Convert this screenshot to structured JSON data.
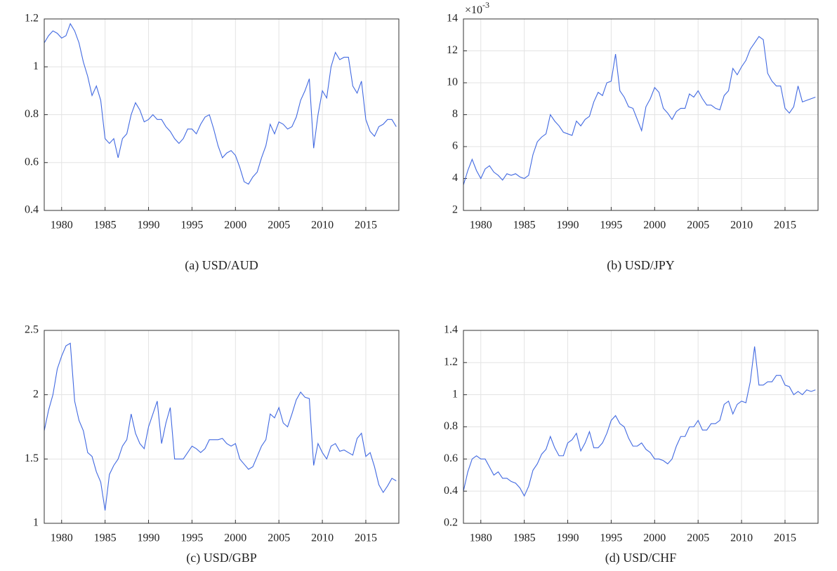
{
  "chart_data": [
    {
      "type": "line",
      "caption": "(a) USD/AUD",
      "color": "#4169e1",
      "grid": true,
      "xlim": [
        1978,
        2018.8
      ],
      "xticks": [
        1980,
        1985,
        1990,
        1995,
        2000,
        2005,
        2010,
        2015
      ],
      "ylim": [
        0.4,
        1.2
      ],
      "yticks": [
        0.4,
        0.6,
        0.8,
        1,
        1.2
      ],
      "x": [
        1978,
        1978.5,
        1979,
        1979.5,
        1980,
        1980.5,
        1981,
        1981.5,
        1982,
        1982.5,
        1983,
        1983.5,
        1984,
        1984.5,
        1985,
        1985.5,
        1986,
        1986.5,
        1987,
        1987.5,
        1988,
        1988.5,
        1989,
        1989.5,
        1990,
        1990.5,
        1991,
        1991.5,
        1992,
        1992.5,
        1993,
        1993.5,
        1994,
        1994.5,
        1995,
        1995.5,
        1996,
        1996.5,
        1997,
        1997.5,
        1998,
        1998.5,
        1999,
        1999.5,
        2000,
        2000.5,
        2001,
        2001.5,
        2002,
        2002.5,
        2003,
        2003.5,
        2004,
        2004.5,
        2005,
        2005.5,
        2006,
        2006.5,
        2007,
        2007.5,
        2008,
        2008.5,
        2009,
        2009.5,
        2010,
        2010.5,
        2011,
        2011.5,
        2012,
        2012.5,
        2013,
        2013.5,
        2014,
        2014.5,
        2015,
        2015.5,
        2016,
        2016.5,
        2017,
        2017.5,
        2018,
        2018.5
      ],
      "values": [
        1.1,
        1.13,
        1.15,
        1.14,
        1.12,
        1.13,
        1.18,
        1.15,
        1.1,
        1.02,
        0.96,
        0.88,
        0.92,
        0.86,
        0.7,
        0.68,
        0.7,
        0.62,
        0.7,
        0.72,
        0.8,
        0.85,
        0.82,
        0.77,
        0.78,
        0.8,
        0.78,
        0.78,
        0.75,
        0.73,
        0.7,
        0.68,
        0.7,
        0.74,
        0.74,
        0.72,
        0.76,
        0.79,
        0.8,
        0.74,
        0.67,
        0.62,
        0.64,
        0.65,
        0.63,
        0.58,
        0.52,
        0.51,
        0.54,
        0.56,
        0.62,
        0.67,
        0.76,
        0.72,
        0.77,
        0.76,
        0.74,
        0.75,
        0.79,
        0.86,
        0.9,
        0.95,
        0.66,
        0.8,
        0.9,
        0.87,
        1.0,
        1.06,
        1.03,
        1.04,
        1.04,
        0.92,
        0.89,
        0.94,
        0.78,
        0.73,
        0.71,
        0.75,
        0.76,
        0.78,
        0.78,
        0.75
      ]
    },
    {
      "type": "line",
      "caption": "(b) USD/JPY",
      "color": "#4169e1",
      "grid": true,
      "y_multiplier_base": "×10",
      "y_multiplier_exponent": "-3",
      "xlim": [
        1978,
        2018.8
      ],
      "xticks": [
        1980,
        1985,
        1990,
        1995,
        2000,
        2005,
        2010,
        2015
      ],
      "ylim": [
        2,
        14
      ],
      "yticks": [
        2,
        4,
        6,
        8,
        10,
        12,
        14
      ],
      "x": [
        1978,
        1978.5,
        1979,
        1979.5,
        1980,
        1980.5,
        1981,
        1981.5,
        1982,
        1982.5,
        1983,
        1983.5,
        1984,
        1984.5,
        1985,
        1985.5,
        1986,
        1986.5,
        1987,
        1987.5,
        1988,
        1988.5,
        1989,
        1989.5,
        1990,
        1990.5,
        1991,
        1991.5,
        1992,
        1992.5,
        1993,
        1993.5,
        1994,
        1994.5,
        1995,
        1995.5,
        1996,
        1996.5,
        1997,
        1997.5,
        1998,
        1998.5,
        1999,
        1999.5,
        2000,
        2000.5,
        2001,
        2001.5,
        2002,
        2002.5,
        2003,
        2003.5,
        2004,
        2004.5,
        2005,
        2005.5,
        2006,
        2006.5,
        2007,
        2007.5,
        2008,
        2008.5,
        2009,
        2009.5,
        2010,
        2010.5,
        2011,
        2011.5,
        2012,
        2012.5,
        2013,
        2013.5,
        2014,
        2014.5,
        2015,
        2015.5,
        2016,
        2016.5,
        2017,
        2017.5,
        2018,
        2018.5
      ],
      "values": [
        3.6,
        4.5,
        5.2,
        4.5,
        4.0,
        4.6,
        4.8,
        4.4,
        4.2,
        3.9,
        4.3,
        4.2,
        4.3,
        4.1,
        4.0,
        4.2,
        5.5,
        6.3,
        6.6,
        6.8,
        8.0,
        7.6,
        7.3,
        6.9,
        6.8,
        6.7,
        7.6,
        7.3,
        7.7,
        7.9,
        8.8,
        9.4,
        9.2,
        10.0,
        10.1,
        11.8,
        9.5,
        9.1,
        8.5,
        8.4,
        7.7,
        7.0,
        8.5,
        9.0,
        9.7,
        9.4,
        8.4,
        8.1,
        7.7,
        8.2,
        8.4,
        8.4,
        9.3,
        9.1,
        9.5,
        9.0,
        8.6,
        8.6,
        8.4,
        8.3,
        9.2,
        9.5,
        10.9,
        10.5,
        11.0,
        11.4,
        12.1,
        12.5,
        12.9,
        12.7,
        10.6,
        10.1,
        9.8,
        9.8,
        8.4,
        8.1,
        8.5,
        9.8,
        8.8,
        8.9,
        9.0,
        9.1
      ]
    },
    {
      "type": "line",
      "caption": "(c) USD/GBP",
      "color": "#4169e1",
      "grid": true,
      "xlim": [
        1978,
        2018.8
      ],
      "xticks": [
        1980,
        1985,
        1990,
        1995,
        2000,
        2005,
        2010,
        2015
      ],
      "ylim": [
        1,
        2.5
      ],
      "yticks": [
        1,
        1.5,
        2,
        2.5
      ],
      "x": [
        1978,
        1978.5,
        1979,
        1979.5,
        1980,
        1980.5,
        1981,
        1981.5,
        1982,
        1982.5,
        1983,
        1983.5,
        1984,
        1984.5,
        1985,
        1985.5,
        1986,
        1986.5,
        1987,
        1987.5,
        1988,
        1988.5,
        1989,
        1989.5,
        1990,
        1990.5,
        1991,
        1991.5,
        1992,
        1992.5,
        1993,
        1993.5,
        1994,
        1994.5,
        1995,
        1995.5,
        1996,
        1996.5,
        1997,
        1997.5,
        1998,
        1998.5,
        1999,
        1999.5,
        2000,
        2000.5,
        2001,
        2001.5,
        2002,
        2002.5,
        2003,
        2003.5,
        2004,
        2004.5,
        2005,
        2005.5,
        2006,
        2006.5,
        2007,
        2007.5,
        2008,
        2008.5,
        2009,
        2009.5,
        2010,
        2010.5,
        2011,
        2011.5,
        2012,
        2012.5,
        2013,
        2013.5,
        2014,
        2014.5,
        2015,
        2015.5,
        2016,
        2016.5,
        2017,
        2017.5,
        2018,
        2018.5
      ],
      "values": [
        1.72,
        1.88,
        2.0,
        2.2,
        2.3,
        2.38,
        2.4,
        1.95,
        1.8,
        1.72,
        1.55,
        1.52,
        1.4,
        1.32,
        1.1,
        1.38,
        1.45,
        1.5,
        1.6,
        1.65,
        1.85,
        1.7,
        1.62,
        1.58,
        1.75,
        1.85,
        1.95,
        1.62,
        1.78,
        1.9,
        1.5,
        1.5,
        1.5,
        1.55,
        1.6,
        1.58,
        1.55,
        1.58,
        1.65,
        1.65,
        1.65,
        1.66,
        1.62,
        1.6,
        1.62,
        1.5,
        1.46,
        1.42,
        1.44,
        1.52,
        1.6,
        1.65,
        1.85,
        1.82,
        1.9,
        1.78,
        1.75,
        1.85,
        1.96,
        2.02,
        1.98,
        1.97,
        1.45,
        1.62,
        1.55,
        1.5,
        1.6,
        1.62,
        1.56,
        1.57,
        1.55,
        1.53,
        1.66,
        1.7,
        1.52,
        1.55,
        1.44,
        1.3,
        1.24,
        1.29,
        1.35,
        1.33
      ]
    },
    {
      "type": "line",
      "caption": "(d) USD/CHF",
      "color": "#4169e1",
      "grid": true,
      "xlim": [
        1978,
        2018.8
      ],
      "xticks": [
        1980,
        1985,
        1990,
        1995,
        2000,
        2005,
        2010,
        2015
      ],
      "ylim": [
        0.2,
        1.4
      ],
      "yticks": [
        0.2,
        0.4,
        0.6,
        0.8,
        1,
        1.2,
        1.4
      ],
      "x": [
        1978,
        1978.5,
        1979,
        1979.5,
        1980,
        1980.5,
        1981,
        1981.5,
        1982,
        1982.5,
        1983,
        1983.5,
        1984,
        1984.5,
        1985,
        1985.5,
        1986,
        1986.5,
        1987,
        1987.5,
        1988,
        1988.5,
        1989,
        1989.5,
        1990,
        1990.5,
        1991,
        1991.5,
        1992,
        1992.5,
        1993,
        1993.5,
        1994,
        1994.5,
        1995,
        1995.5,
        1996,
        1996.5,
        1997,
        1997.5,
        1998,
        1998.5,
        1999,
        1999.5,
        2000,
        2000.5,
        2001,
        2001.5,
        2002,
        2002.5,
        2003,
        2003.5,
        2004,
        2004.5,
        2005,
        2005.5,
        2006,
        2006.5,
        2007,
        2007.5,
        2008,
        2008.5,
        2009,
        2009.5,
        2010,
        2010.5,
        2011,
        2011.5,
        2012,
        2012.5,
        2013,
        2013.5,
        2014,
        2014.5,
        2015,
        2015.5,
        2016,
        2016.5,
        2017,
        2017.5,
        2018,
        2018.5
      ],
      "values": [
        0.4,
        0.52,
        0.6,
        0.62,
        0.6,
        0.6,
        0.55,
        0.5,
        0.52,
        0.48,
        0.48,
        0.46,
        0.45,
        0.42,
        0.37,
        0.43,
        0.53,
        0.57,
        0.63,
        0.66,
        0.74,
        0.67,
        0.62,
        0.62,
        0.7,
        0.72,
        0.76,
        0.65,
        0.7,
        0.77,
        0.67,
        0.67,
        0.7,
        0.76,
        0.84,
        0.87,
        0.82,
        0.8,
        0.73,
        0.68,
        0.68,
        0.7,
        0.66,
        0.64,
        0.6,
        0.6,
        0.59,
        0.57,
        0.6,
        0.68,
        0.74,
        0.74,
        0.8,
        0.8,
        0.84,
        0.78,
        0.78,
        0.82,
        0.82,
        0.84,
        0.94,
        0.96,
        0.88,
        0.94,
        0.96,
        0.95,
        1.08,
        1.3,
        1.06,
        1.06,
        1.08,
        1.08,
        1.12,
        1.12,
        1.06,
        1.05,
        1.0,
        1.02,
        1.0,
        1.03,
        1.02,
        1.03
      ]
    }
  ]
}
